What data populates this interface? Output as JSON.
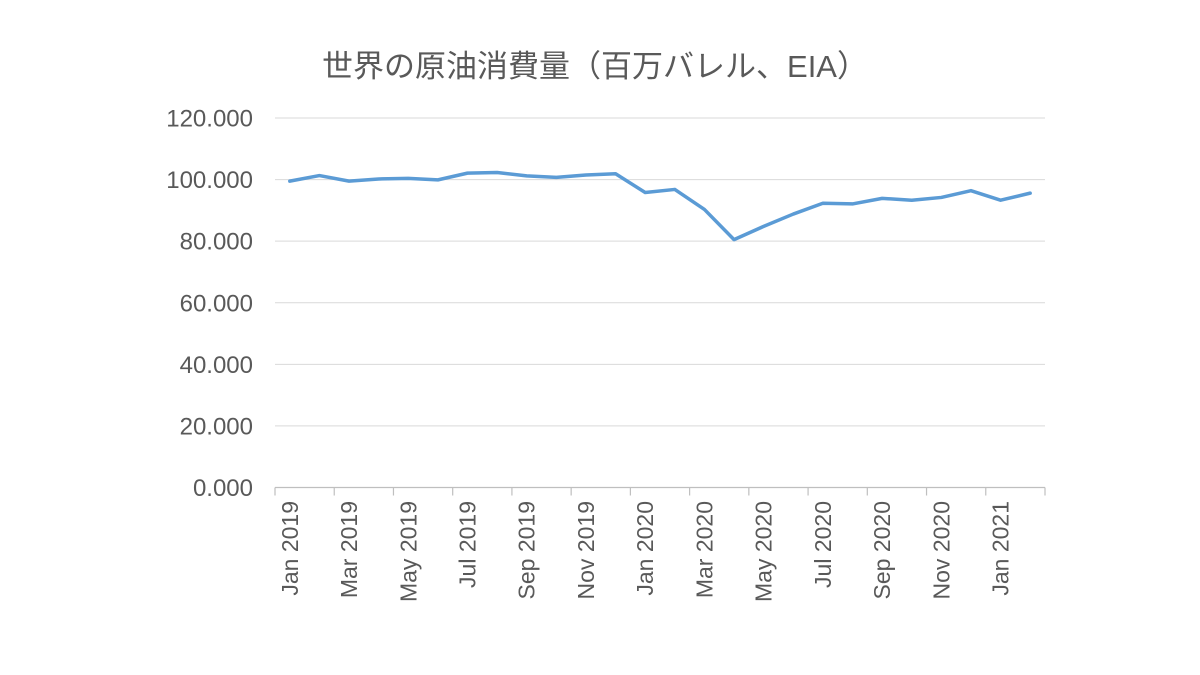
{
  "title": "世界の原油消費量（百万バレル、EIA）",
  "chart_data": {
    "type": "line",
    "title": "世界の原油消費量（百万バレル、EIA）",
    "x": [
      "Jan 2019",
      "Feb 2019",
      "Mar 2019",
      "Apr 2019",
      "May 2019",
      "Jun 2019",
      "Jul 2019",
      "Aug 2019",
      "Sep 2019",
      "Oct 2019",
      "Nov 2019",
      "Dec 2019",
      "Jan 2020",
      "Feb 2020",
      "Mar 2020",
      "Apr 2020",
      "May 2020",
      "Jun 2020",
      "Jul 2020",
      "Aug 2020",
      "Sep 2020",
      "Oct 2020",
      "Nov 2020",
      "Dec 2020",
      "Jan 2021",
      "Feb 2021"
    ],
    "values": [
      99.5,
      101.3,
      99.5,
      100.2,
      100.4,
      99.9,
      102.1,
      102.3,
      101.2,
      100.7,
      101.5,
      101.9,
      95.8,
      96.8,
      90.3,
      80.5,
      84.8,
      88.8,
      92.3,
      92.1,
      93.9,
      93.3,
      94.2,
      96.4,
      93.3,
      95.6
    ],
    "xlabel": "",
    "ylabel": "",
    "ylim": [
      0,
      120
    ],
    "y_ticks": [
      0,
      20,
      40,
      60,
      80,
      100,
      120
    ],
    "y_tick_labels": [
      "0.000",
      "20.000",
      "40.000",
      "60.000",
      "80.000",
      "100.000",
      "120.000"
    ],
    "x_tick_labels": [
      "Jan 2019",
      "Mar 2019",
      "May 2019",
      "Jul 2019",
      "Sep 2019",
      "Nov 2019",
      "Jan 2020",
      "Mar 2020",
      "May 2020",
      "Jul 2020",
      "Sep 2020",
      "Nov 2020",
      "Jan 2021"
    ],
    "x_tick_every": 2,
    "x_label_rotation": -90,
    "grid": "horizontal",
    "legend": "none",
    "markers": "none",
    "line_color": "#5B9BD5",
    "gridline_color": "#D9D9D9",
    "axis_color": "#BFBFBF",
    "label_color": "#595959",
    "title_color": "#595959",
    "background_color": "#FFFFFF"
  }
}
